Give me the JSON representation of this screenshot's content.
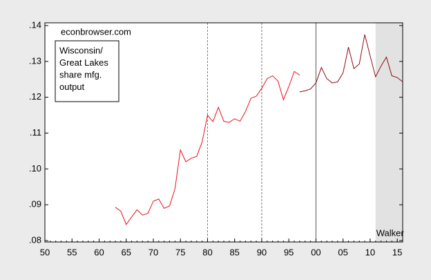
{
  "chart_data": {
    "type": "line",
    "annotations": {
      "source": "econbrowser.com",
      "legend_lines": [
        "Wisconsin/",
        "Great Lakes",
        "share mfg.",
        "output"
      ]
    },
    "shade": {
      "from": 2011,
      "to": 2016,
      "label": "Walker",
      "color": "#e2e2e2"
    },
    "vlines": [
      {
        "x": 1980,
        "style": "dashed"
      },
      {
        "x": 1990,
        "style": "dashed"
      },
      {
        "x": 2000,
        "style": "solid"
      }
    ],
    "x": [
      1963,
      1964,
      1965,
      1966,
      1967,
      1968,
      1969,
      1970,
      1971,
      1972,
      1973,
      1974,
      1975,
      1976,
      1977,
      1978,
      1979,
      1980,
      1981,
      1982,
      1983,
      1984,
      1985,
      1986,
      1987,
      1988,
      1989,
      1990,
      1991,
      1992,
      1993,
      1994,
      1995,
      1996,
      1997,
      1998,
      1999,
      2000,
      2001,
      2002,
      2003,
      2004,
      2005,
      2006,
      2007,
      2008,
      2009,
      2010,
      2011,
      2012,
      2013,
      2014,
      2015,
      2016
    ],
    "series": [
      {
        "color": "#e8101a",
        "values": [
          0.0893,
          0.0882,
          0.0845,
          0.0866,
          0.0886,
          0.0871,
          0.0876,
          0.091,
          0.0916,
          0.089,
          0.0897,
          0.0945,
          0.1053,
          0.102,
          0.103,
          0.1035,
          0.1075,
          0.115,
          0.1132,
          0.1172,
          0.1133,
          0.113,
          0.114,
          0.1133,
          0.116,
          0.1197,
          0.1203,
          0.1225,
          0.1252,
          0.126,
          0.1245,
          0.1193,
          0.123,
          0.1272,
          0.1262,
          null,
          null,
          null,
          null,
          null,
          null,
          null,
          null,
          null,
          null,
          null,
          null,
          null,
          null,
          null,
          null,
          null,
          null,
          null
        ]
      },
      {
        "color": "#8b0a10",
        "values": [
          null,
          null,
          null,
          null,
          null,
          null,
          null,
          null,
          null,
          null,
          null,
          null,
          null,
          null,
          null,
          null,
          null,
          null,
          null,
          null,
          null,
          null,
          null,
          null,
          null,
          null,
          null,
          null,
          null,
          null,
          null,
          null,
          null,
          null,
          0.1215,
          0.1218,
          0.1223,
          0.124,
          0.1283,
          0.1252,
          0.124,
          0.1243,
          0.1268,
          0.134,
          0.128,
          0.1293,
          0.1375,
          0.1315,
          0.1257,
          0.1287,
          0.1312,
          0.126,
          0.1255,
          0.1243
        ]
      }
    ],
    "xlim": [
      1950,
      2016
    ],
    "xticks": [
      {
        "value": 1950,
        "label": "50"
      },
      {
        "value": 1955,
        "label": "55"
      },
      {
        "value": 1960,
        "label": "60"
      },
      {
        "value": 1965,
        "label": "65"
      },
      {
        "value": 1970,
        "label": "70"
      },
      {
        "value": 1975,
        "label": "75"
      },
      {
        "value": 1980,
        "label": "80"
      },
      {
        "value": 1985,
        "label": "85"
      },
      {
        "value": 1990,
        "label": "90"
      },
      {
        "value": 1995,
        "label": "95"
      },
      {
        "value": 2000,
        "label": "00"
      },
      {
        "value": 2005,
        "label": "05"
      },
      {
        "value": 2010,
        "label": "10"
      },
      {
        "value": 2015,
        "label": "15"
      }
    ],
    "ylim": [
      0.08,
      0.14
    ],
    "yticks": [
      {
        "value": 0.08,
        "label": ".08"
      },
      {
        "value": 0.09,
        "label": ".09"
      },
      {
        "value": 0.1,
        "label": ".10"
      },
      {
        "value": 0.11,
        "label": ".11"
      },
      {
        "value": 0.12,
        "label": ".12"
      },
      {
        "value": 0.13,
        "label": ".13"
      },
      {
        "value": 0.14,
        "label": ".14"
      }
    ]
  }
}
